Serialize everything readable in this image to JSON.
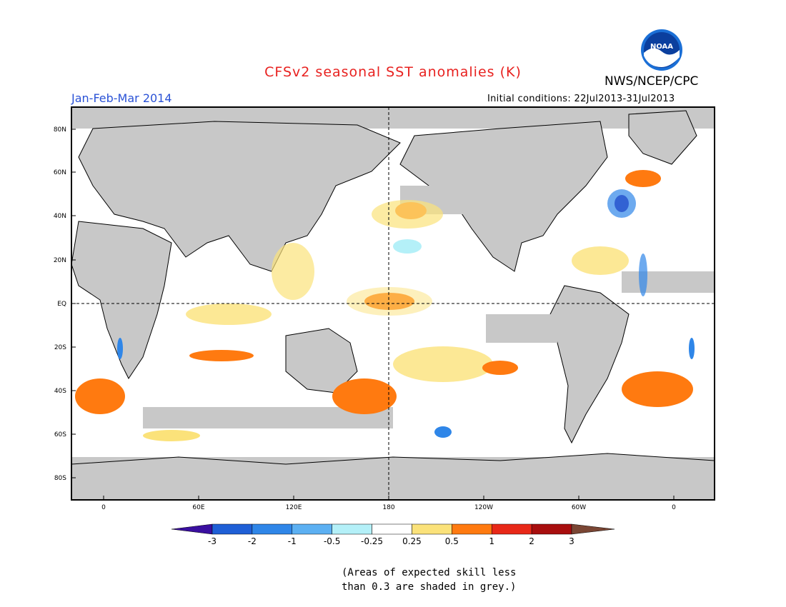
{
  "header": {
    "title": "CFSv2 seasonal SST anomalies (K)",
    "season": "Jan-Feb-Mar 2014",
    "agency": "NWS/NCEP/CPC",
    "initial_conditions": "Initial conditions: 22Jul2013-31Jul2013",
    "logo_text": "NOAA"
  },
  "map": {
    "lat_labels": [
      "80N",
      "60N",
      "40N",
      "20N",
      "EQ",
      "20S",
      "40S",
      "60S",
      "80S"
    ],
    "lon_labels": [
      "0",
      "60E",
      "120E",
      "180",
      "120W",
      "60W",
      "0"
    ],
    "grey_meaning": "low-skill"
  },
  "colorbar": {
    "labels": [
      "-3",
      "-2",
      "-1",
      "-0.5",
      "-0.25",
      "0.25",
      "0.5",
      "1",
      "2",
      "3"
    ],
    "colors": [
      "#3a0fa0",
      "#1f5fd6",
      "#2f86e8",
      "#5cb0f2",
      "#b4f0f8",
      "#ffffff",
      "#fbe27a",
      "#ff7a10",
      "#e82818",
      "#a80e0e",
      "#7a4634"
    ]
  },
  "note": {
    "line1": "(Areas of expected skill less",
    "line2": "than 0.3 are shaded in grey.)"
  },
  "colors": {
    "grey": "#c8c8c8",
    "title": "#e8211f",
    "season": "#2a52d6"
  }
}
